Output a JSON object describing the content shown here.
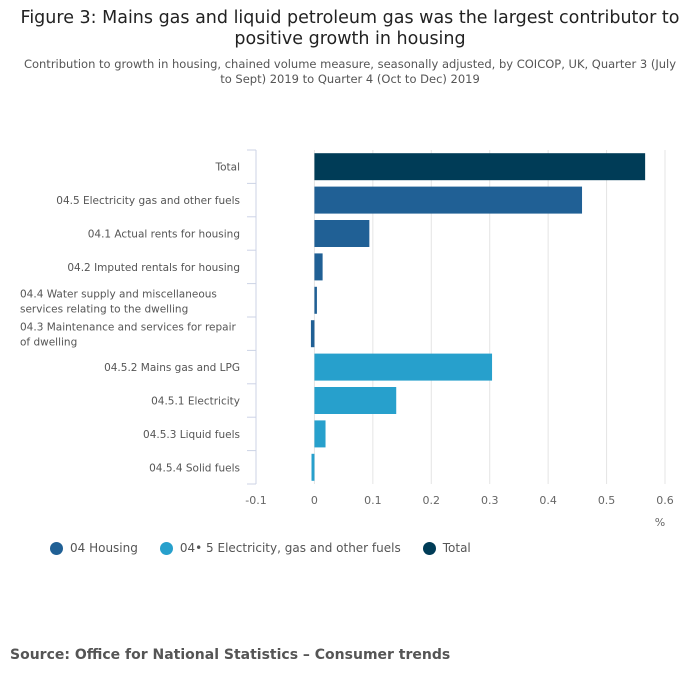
{
  "title": "Figure 3: Mains gas and liquid petroleum gas was the largest contributor to positive growth in housing",
  "subtitle": "Contribution to growth in housing, chained volume measure, seasonally adjusted, by COICOP, UK, Quarter 3 (July to Sept) 2019 to Quarter 4 (Oct to Dec) 2019",
  "source": "Source: Office for National Statistics – Consumer trends",
  "colors": {
    "housing": "#206095",
    "fuels": "#27a0cc",
    "total": "#003c57"
  },
  "chart_data": {
    "type": "bar",
    "orientation": "horizontal",
    "categories": [
      [
        "Total"
      ],
      [
        "04.5 Electricity gas and other fuels"
      ],
      [
        "04.1 Actual rents for housing"
      ],
      [
        "04.2 Imputed rentals for housing"
      ],
      [
        "04.4 Water supply and miscellaneous",
        "services relating to the dwelling"
      ],
      [
        "04.3 Maintenance and services for repair",
        "of dwelling"
      ],
      [
        "04.5.2 Mains gas and LPG"
      ],
      [
        "04.5.1 Electricity"
      ],
      [
        "04.5.3 Liquid fuels"
      ],
      [
        "04.5.4 Solid fuels"
      ]
    ],
    "values": [
      0.566,
      0.458,
      0.094,
      0.014,
      0.004,
      -0.006,
      0.304,
      0.14,
      0.019,
      -0.005
    ],
    "series_of_bar": [
      "total",
      "housing",
      "housing",
      "housing",
      "housing",
      "housing",
      "fuels",
      "fuels",
      "fuels",
      "fuels"
    ],
    "xlim": [
      -0.1,
      0.6
    ],
    "xticks": [
      "-0.1",
      "0",
      "0.1",
      "0.2",
      "0.3",
      "0.4",
      "0.5",
      "0.6"
    ],
    "xtick_values": [
      -0.1,
      0,
      0.1,
      0.2,
      0.3,
      0.4,
      0.5,
      0.6
    ],
    "xlabel": "%",
    "grid": true,
    "legend": {
      "placement": "bottom-left",
      "entries": [
        {
          "key": "housing",
          "label": "04 Housing"
        },
        {
          "key": "fuels",
          "label": "04• 5 Electricity, gas and other fuels"
        },
        {
          "key": "total",
          "label": "Total"
        }
      ]
    }
  }
}
